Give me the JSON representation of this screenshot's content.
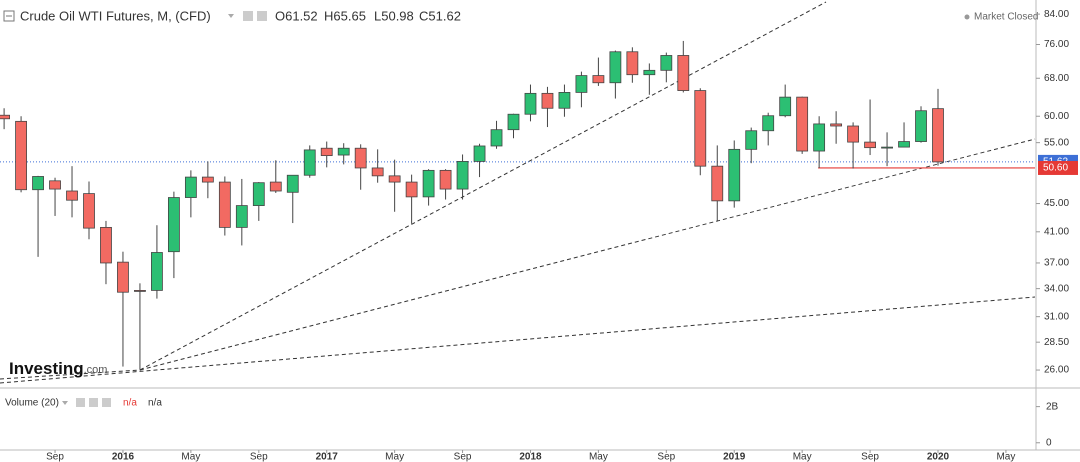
{
  "chart_data": {
    "type": "candlestick",
    "title": "Crude Oil WTI Futures, M, (CFD)",
    "ohlc_header": [
      "O61.52",
      "H65.65",
      "L50.98",
      "C51.62"
    ],
    "status": "Market Closed",
    "watermark": "Investing",
    "watermark_suffix": ".com",
    "log_scale": true,
    "grid": false,
    "up_color": "#2cbf73",
    "down_color": "#f26a62",
    "categories": [
      null,
      null,
      null,
      "Sep",
      null,
      null,
      null,
      "2016",
      null,
      null,
      null,
      "May",
      null,
      null,
      null,
      "Sep",
      null,
      null,
      null,
      "2017",
      null,
      null,
      null,
      "May",
      null,
      null,
      null,
      "Sep",
      null,
      null,
      null,
      "2018",
      null,
      null,
      null,
      "May",
      null,
      null,
      null,
      "Sep",
      null,
      null,
      null,
      "2019",
      null,
      null,
      null,
      "May",
      null,
      null,
      null,
      "Sep",
      null,
      null,
      null,
      "2020",
      null,
      null,
      null,
      "May",
      null
    ],
    "open": [
      60.2,
      59.0,
      47.1,
      48.5,
      46.9,
      46.5,
      41.6,
      37.1,
      33.8,
      33.8,
      38.4,
      45.9,
      49.1,
      48.3,
      41.6,
      44.7,
      48.3,
      46.7,
      49.4,
      54.0,
      52.8,
      54.0,
      50.6,
      49.3,
      48.3,
      46.0,
      50.2,
      47.2,
      51.7,
      54.4,
      57.4,
      60.4,
      64.7,
      61.6,
      64.9,
      68.6,
      67.0,
      74.2,
      68.8,
      69.8,
      73.3,
      65.3,
      50.9,
      45.4,
      53.8,
      57.2,
      60.1,
      63.9,
      53.5,
      58.5,
      58.1,
      55.1,
      54.1,
      54.2,
      55.2,
      61.52,
      null,
      null,
      null,
      null,
      null
    ],
    "high": [
      61.6,
      60.0,
      49.3,
      49.0,
      50.9,
      48.4,
      42.5,
      38.4,
      34.6,
      41.9,
      46.8,
      50.2,
      51.7,
      49.2,
      48.8,
      48.3,
      51.9,
      49.2,
      54.5,
      55.2,
      54.9,
      54.7,
      53.8,
      52.0,
      49.5,
      50.4,
      50.4,
      52.9,
      54.8,
      59.1,
      60.5,
      66.6,
      66.1,
      66.6,
      69.5,
      72.8,
      74.5,
      75.3,
      71.4,
      74.0,
      76.9,
      65.8,
      54.5,
      55.4,
      57.8,
      60.7,
      66.6,
      64.0,
      60.0,
      61.0,
      58.8,
      63.4,
      56.9,
      58.8,
      62.0,
      65.65,
      null,
      null,
      null,
      null,
      null
    ],
    "low": [
      57.5,
      46.7,
      37.75,
      43.2,
      43.0,
      40.0,
      34.5,
      26.3,
      26.05,
      32.9,
      35.2,
      43.0,
      45.8,
      40.5,
      39.2,
      42.5,
      46.6,
      42.2,
      49.0,
      50.7,
      51.2,
      47.1,
      48.2,
      43.8,
      42.1,
      44.7,
      45.6,
      45.6,
      49.1,
      53.9,
      55.8,
      59.0,
      57.9,
      59.9,
      61.8,
      66.3,
      63.6,
      67.0,
      64.4,
      67.1,
      64.9,
      49.4,
      42.4,
      44.4,
      51.4,
      54.5,
      59.8,
      53.0,
      50.6,
      54.8,
      50.5,
      52.8,
      50.9,
      54.2,
      55.0,
      50.98,
      null,
      null,
      null,
      null,
      null
    ],
    "close": [
      59.5,
      47.1,
      49.2,
      47.2,
      45.5,
      41.5,
      37.0,
      33.6,
      33.7,
      38.3,
      45.9,
      49.1,
      48.3,
      41.6,
      44.7,
      48.2,
      46.9,
      49.4,
      53.7,
      52.7,
      54.0,
      50.6,
      49.3,
      48.3,
      46.0,
      50.2,
      47.2,
      51.7,
      54.4,
      57.4,
      60.4,
      64.7,
      61.6,
      64.9,
      68.6,
      67.0,
      74.2,
      68.8,
      69.8,
      73.3,
      65.3,
      50.9,
      45.4,
      53.8,
      57.2,
      60.1,
      63.9,
      53.5,
      58.5,
      58.1,
      55.1,
      54.1,
      54.2,
      55.2,
      61.1,
      51.62,
      null,
      null,
      null,
      null,
      null
    ],
    "ylim": [
      24.75,
      88
    ],
    "yticks": [
      {
        "value": 84,
        "label": "84.00"
      },
      {
        "value": 76,
        "label": "76.00"
      },
      {
        "value": 68,
        "label": "68.00"
      },
      {
        "value": 60,
        "label": "60.00"
      },
      {
        "value": 55,
        "label": "55.00"
      },
      {
        "value": 45,
        "label": "45.00"
      },
      {
        "value": 41,
        "label": "41.00"
      },
      {
        "value": 37,
        "label": "37.00"
      },
      {
        "value": 34,
        "label": "34.00"
      },
      {
        "value": 31,
        "label": "31.00"
      },
      {
        "value": 28.5,
        "label": "28.50"
      },
      {
        "value": 26,
        "label": "26.00"
      }
    ],
    "last_price": 51.62,
    "last_price_color": "#3d6fd6",
    "horizontal_line": {
      "value": 50.6,
      "label": "50.60",
      "color": "#e53935"
    },
    "volume_title": "Volume (20)",
    "volume_values": [
      "n/a",
      "n/a"
    ],
    "volume_ylim": [
      -400000000,
      3030000000
    ],
    "volume_ticks": [
      {
        "value": 2000000000,
        "label": "2B"
      },
      0
    ]
  }
}
